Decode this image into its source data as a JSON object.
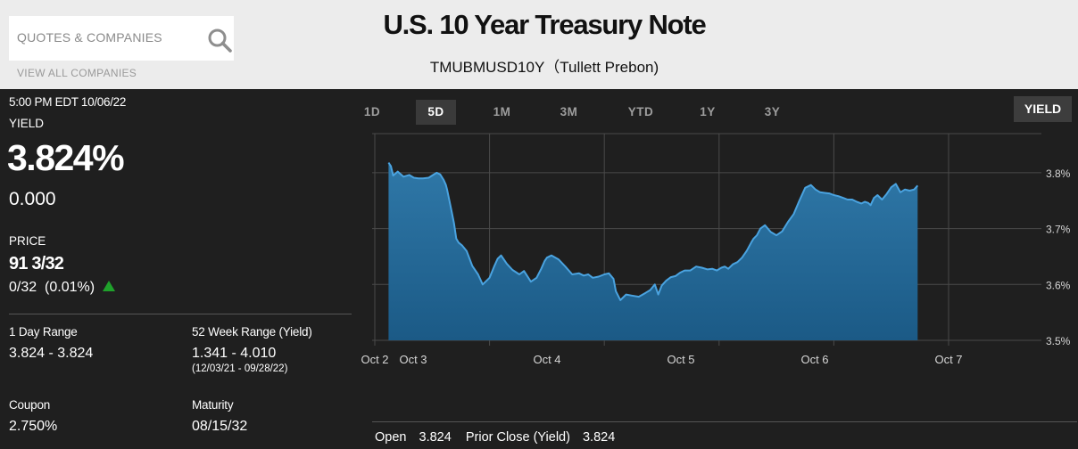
{
  "search": {
    "placeholder": "QUOTES & COMPANIES",
    "view_all": "VIEW ALL COMPANIES"
  },
  "header": {
    "title": "U.S. 10 Year Treasury Note",
    "subtitle": "TMUBMUSD10Y（Tullett Prebon)"
  },
  "quote": {
    "timestamp": "5:00 PM EDT 10/06/22",
    "yield_label": "YIELD",
    "yield_value": "3.824%",
    "yield_change": "0.000",
    "price_label": "PRICE",
    "price_value": "91 3/32",
    "price_change": "0/32",
    "price_change_pct": "(0.01%)",
    "price_direction": "up",
    "up_color": "#1fa12b"
  },
  "stats": {
    "day_range_label": "1 Day Range",
    "day_range_value": "3.824 - 3.824",
    "week52_label": "52 Week Range (Yield)",
    "week52_value": "1.341 - 4.010",
    "week52_dates": "(12/03/21 - 09/28/22)",
    "coupon_label": "Coupon",
    "coupon_value": "2.750%",
    "maturity_label": "Maturity",
    "maturity_value": "08/15/32"
  },
  "ranges": {
    "tabs": [
      "1D",
      "5D",
      "1M",
      "3M",
      "YTD",
      "1Y",
      "3Y"
    ],
    "active": "5D",
    "mode": "YIELD"
  },
  "footer": {
    "open_label": "Open",
    "open_value": "3.824",
    "prior_label": "Prior Close (Yield)",
    "prior_value": "3.824"
  },
  "chart_data": {
    "type": "area",
    "x_ticks": [
      "Oct 2",
      "Oct 3",
      "Oct 4",
      "Oct 5",
      "Oct 6",
      "Oct 7"
    ],
    "y_ticks": [
      "3.5%",
      "3.6%",
      "3.7%",
      "3.8%"
    ],
    "ylim": [
      3.5,
      3.87
    ],
    "y_axis_position": "right",
    "grid": true,
    "line_color": "#4aa3e0",
    "fill_top_color": "#2f78a8",
    "fill_bottom_color": "#1b5a86",
    "series": [
      {
        "x": [
          2.12,
          2.14,
          2.16,
          2.2,
          2.25,
          2.3,
          2.34,
          2.38,
          2.42,
          2.47,
          2.5,
          2.54,
          2.57,
          2.6,
          2.62,
          2.63,
          2.65,
          2.67,
          2.69,
          2.71,
          2.73,
          2.76,
          2.8,
          2.85,
          2.9,
          2.94,
          3.0,
          3.04,
          3.07,
          3.1,
          3.15,
          3.2,
          3.26,
          3.3,
          3.36,
          3.41,
          3.45,
          3.48,
          3.5,
          3.54,
          3.6,
          3.66,
          3.72,
          3.78,
          3.82,
          3.86,
          3.9,
          3.95,
          4.0,
          4.04,
          4.08,
          4.1,
          4.14,
          4.19,
          4.24,
          4.3,
          4.36,
          4.4,
          4.44,
          4.47,
          4.5,
          4.54,
          4.58,
          4.62,
          4.66,
          4.7,
          4.75,
          4.8,
          4.85,
          4.9,
          4.94,
          4.98,
          5.02,
          5.05,
          5.08,
          5.12,
          5.16,
          5.2,
          5.24,
          5.28,
          5.3,
          5.33,
          5.36,
          5.4,
          5.45,
          5.5,
          5.55,
          5.6,
          5.65,
          5.7,
          5.75,
          5.8,
          5.84,
          5.88,
          5.92,
          5.96,
          6.0,
          6.04,
          6.08,
          6.12,
          6.16,
          6.2,
          6.24,
          6.27,
          6.3,
          6.32,
          6.35,
          6.38,
          6.42,
          6.46,
          6.5,
          6.54,
          6.58,
          6.62,
          6.66,
          6.7,
          6.73
        ],
        "y": [
          3.818,
          3.812,
          3.795,
          3.802,
          3.793,
          3.796,
          3.791,
          3.79,
          3.79,
          3.791,
          3.795,
          3.8,
          3.797,
          3.787,
          3.778,
          3.77,
          3.75,
          3.73,
          3.71,
          3.682,
          3.675,
          3.67,
          3.66,
          3.633,
          3.618,
          3.6,
          3.612,
          3.632,
          3.646,
          3.652,
          3.637,
          3.626,
          3.618,
          3.624,
          3.605,
          3.612,
          3.628,
          3.642,
          3.648,
          3.652,
          3.645,
          3.632,
          3.618,
          3.62,
          3.616,
          3.618,
          3.612,
          3.614,
          3.618,
          3.62,
          3.61,
          3.588,
          3.572,
          3.582,
          3.58,
          3.578,
          3.585,
          3.59,
          3.6,
          3.582,
          3.598,
          3.607,
          3.613,
          3.615,
          3.621,
          3.625,
          3.625,
          3.632,
          3.63,
          3.627,
          3.628,
          3.625,
          3.63,
          3.632,
          3.628,
          3.636,
          3.64,
          3.648,
          3.66,
          3.675,
          3.682,
          3.688,
          3.7,
          3.706,
          3.694,
          3.688,
          3.695,
          3.712,
          3.726,
          3.75,
          3.773,
          3.778,
          3.77,
          3.765,
          3.764,
          3.763,
          3.76,
          3.758,
          3.755,
          3.752,
          3.752,
          3.748,
          3.745,
          3.748,
          3.746,
          3.742,
          3.755,
          3.76,
          3.752,
          3.762,
          3.774,
          3.78,
          3.765,
          3.77,
          3.768,
          3.77,
          3.777
        ]
      }
    ]
  }
}
